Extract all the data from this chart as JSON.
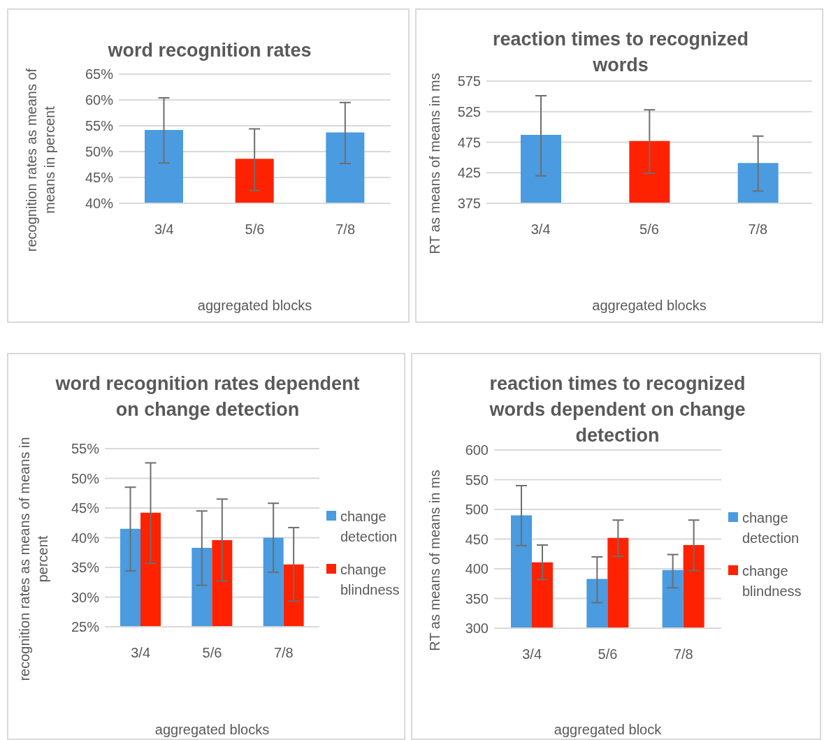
{
  "chart_data": [
    {
      "type": "bar",
      "title": "word recognition rates",
      "xlabel": "aggregated blocks",
      "ylabel": "recognition rates as means of means in percent",
      "categories": [
        "3/4",
        "5/6",
        "7/8"
      ],
      "values": [
        54.2,
        48.6,
        53.7
      ],
      "colors": [
        "#4a9be0",
        "#ff2200",
        "#4a9be0"
      ],
      "errors": [
        [
          47.8,
          60.4
        ],
        [
          42.5,
          54.4
        ],
        [
          47.7,
          59.5
        ]
      ],
      "ylim": [
        40,
        65
      ],
      "yticks": [
        {
          "value": 40,
          "label": "40%"
        },
        {
          "value": 45,
          "label": "45%"
        },
        {
          "value": 50,
          "label": "50%"
        },
        {
          "value": 55,
          "label": "55%"
        },
        {
          "value": 60,
          "label": "60%"
        },
        {
          "value": 65,
          "label": "65%"
        }
      ],
      "grid": "y",
      "legend": false
    },
    {
      "type": "bar",
      "title": "reaction times to recognized words",
      "xlabel": "aggregated blocks",
      "ylabel": "RT as means of means in ms",
      "categories": [
        "3/4",
        "5/6",
        "7/8"
      ],
      "values": [
        487,
        477,
        441
      ],
      "colors": [
        "#4a9be0",
        "#ff2200",
        "#4a9be0"
      ],
      "errors": [
        [
          420,
          551
        ],
        [
          424,
          528
        ],
        [
          395,
          485
        ]
      ],
      "ylim": [
        375,
        575
      ],
      "yticks": [
        375,
        425,
        475,
        525,
        575
      ],
      "grid": "y",
      "legend": false
    },
    {
      "type": "bar",
      "title": "word recognition rates dependent on change detection",
      "xlabel": "aggregated blocks",
      "ylabel": "recognition rates as means of means in percent",
      "categories": [
        "3/4",
        "5/6",
        "7/8"
      ],
      "series": [
        {
          "name": "change detection",
          "color": "#4a9be0",
          "values": [
            41.5,
            38.3,
            40.0
          ],
          "errors": [
            [
              34.4,
              48.5
            ],
            [
              32.0,
              44.5
            ],
            [
              34.2,
              45.8
            ]
          ]
        },
        {
          "name": "change blindness",
          "color": "#ff2200",
          "values": [
            44.2,
            39.6,
            35.5
          ],
          "errors": [
            [
              35.7,
              52.6
            ],
            [
              32.7,
              46.5
            ],
            [
              29.3,
              41.7
            ]
          ]
        }
      ],
      "ylim": [
        25,
        55
      ],
      "yticks": [
        {
          "value": 25,
          "label": "25%"
        },
        {
          "value": 30,
          "label": "30%"
        },
        {
          "value": 35,
          "label": "35%"
        },
        {
          "value": 40,
          "label": "40%"
        },
        {
          "value": 45,
          "label": "45%"
        },
        {
          "value": 50,
          "label": "50%"
        },
        {
          "value": 55,
          "label": "55%"
        }
      ],
      "grid": "y",
      "legend": "right"
    },
    {
      "type": "bar",
      "title": "reaction times to recognized words dependent on change detection",
      "xlabel": "aggregated block",
      "ylabel": "RT as means of means in ms",
      "categories": [
        "3/4",
        "5/6",
        "7/8"
      ],
      "series": [
        {
          "name": "change detection",
          "color": "#4a9be0",
          "values": [
            490,
            383,
            398
          ],
          "errors": [
            [
              439,
              540
            ],
            [
              343,
              420
            ],
            [
              368,
              424
            ]
          ]
        },
        {
          "name": "change blindness",
          "color": "#ff2200",
          "values": [
            411,
            452,
            440
          ],
          "errors": [
            [
              382,
              440
            ],
            [
              421,
              482
            ],
            [
              397,
              482
            ]
          ]
        }
      ],
      "ylim": [
        300,
        600
      ],
      "yticks": [
        300,
        350,
        400,
        450,
        500,
        550,
        600
      ],
      "grid": "y",
      "legend": "right"
    }
  ]
}
